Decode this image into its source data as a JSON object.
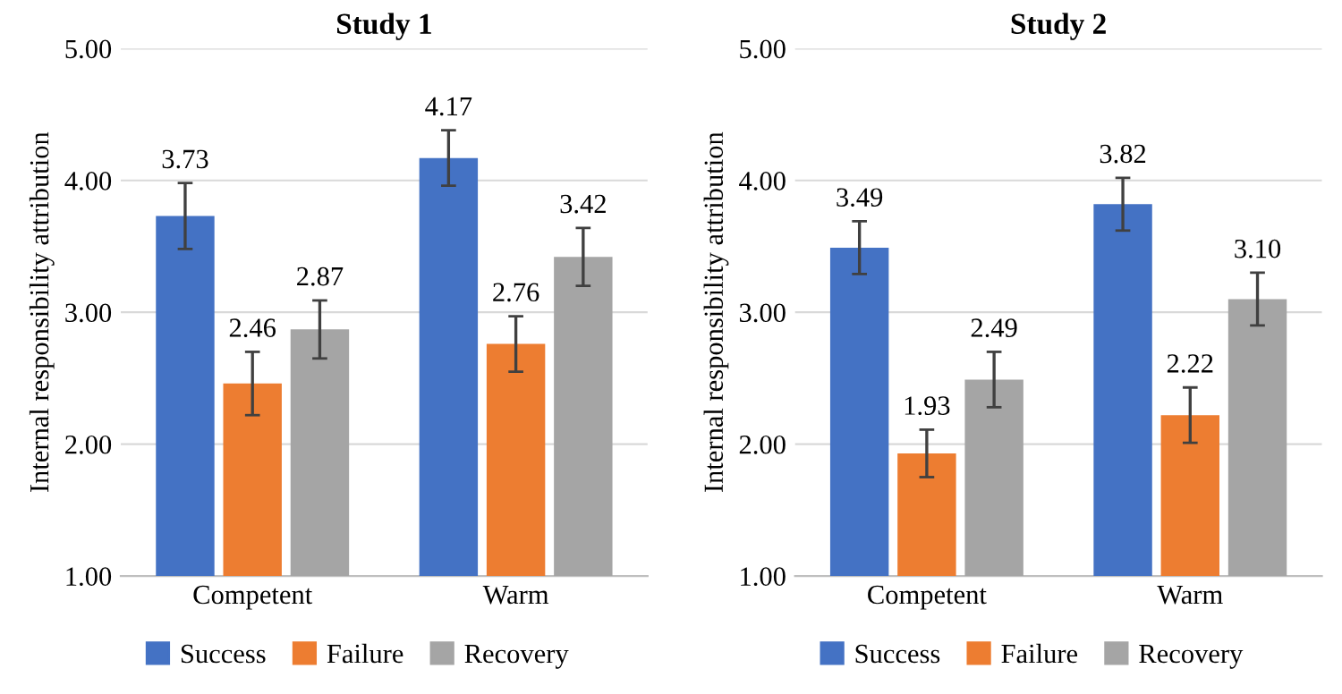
{
  "chart_data": [
    {
      "type": "bar",
      "title": "Study 1",
      "ylabel": "Internal responsibility attribution",
      "categories": [
        "Competent",
        "Warm"
      ],
      "series": [
        {
          "name": "Success",
          "color": "#4472c4",
          "values": [
            3.73,
            4.17
          ],
          "errors": [
            0.25,
            0.21
          ],
          "value_labels": [
            "3.73",
            "4.17"
          ]
        },
        {
          "name": "Failure",
          "color": "#ed7d31",
          "values": [
            2.46,
            2.76
          ],
          "errors": [
            0.24,
            0.21
          ],
          "value_labels": [
            "2.46",
            "2.76"
          ]
        },
        {
          "name": "Recovery",
          "color": "#a5a5a5",
          "values": [
            2.87,
            3.42
          ],
          "errors": [
            0.22,
            0.22
          ],
          "value_labels": [
            "2.87",
            "3.42"
          ]
        }
      ],
      "ylim": [
        1,
        5
      ],
      "yticks": [
        {
          "value": 1,
          "label": "1.00"
        },
        {
          "value": 2,
          "label": "2.00"
        },
        {
          "value": 3,
          "label": "3.00"
        },
        {
          "value": 4,
          "label": "4.00"
        },
        {
          "value": 5,
          "label": "5.00"
        }
      ],
      "grid": "y",
      "legend": "bottom"
    },
    {
      "type": "bar",
      "title": "Study 2",
      "ylabel": "Internal responsibility attribution",
      "categories": [
        "Competent",
        "Warm"
      ],
      "series": [
        {
          "name": "Success",
          "color": "#4472c4",
          "values": [
            3.49,
            3.82
          ],
          "errors": [
            0.2,
            0.2
          ],
          "value_labels": [
            "3.49",
            "3.82"
          ]
        },
        {
          "name": "Failure",
          "color": "#ed7d31",
          "values": [
            1.93,
            2.22
          ],
          "errors": [
            0.18,
            0.21
          ],
          "value_labels": [
            "1.93",
            "2.22"
          ]
        },
        {
          "name": "Recovery",
          "color": "#a5a5a5",
          "values": [
            2.49,
            3.1
          ],
          "errors": [
            0.21,
            0.2
          ],
          "value_labels": [
            "2.49",
            "3.10"
          ]
        }
      ],
      "ylim": [
        1,
        5
      ],
      "yticks": [
        {
          "value": 1,
          "label": "1.00"
        },
        {
          "value": 2,
          "label": "2.00"
        },
        {
          "value": 3,
          "label": "3.00"
        },
        {
          "value": 4,
          "label": "4.00"
        },
        {
          "value": 5,
          "label": "5.00"
        }
      ],
      "grid": "y",
      "legend": "bottom"
    }
  ]
}
